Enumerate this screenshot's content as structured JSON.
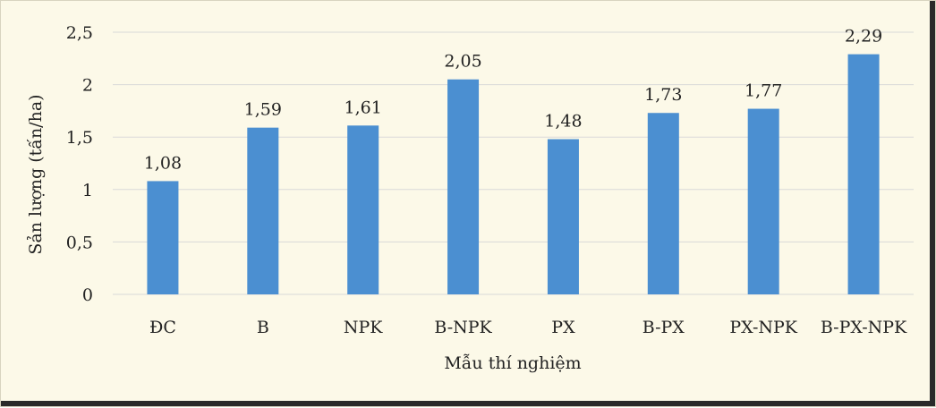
{
  "chart_data": {
    "type": "bar",
    "categories": [
      "ĐC",
      "B",
      "NPK",
      "B-NPK",
      "PX",
      "B-PX",
      "PX-NPK",
      "B-PX-NPK"
    ],
    "values": [
      1.08,
      1.59,
      1.61,
      2.05,
      1.48,
      1.73,
      1.77,
      2.29
    ],
    "value_labels": [
      "1,08",
      "1,59",
      "1,61",
      "2,05",
      "1,48",
      "1,73",
      "1,77",
      "2,29"
    ],
    "title": "",
    "xlabel": "Mẫu thí nghiệm",
    "ylabel": "Sản lượng (tấn/ha)",
    "ylim": [
      0,
      2.5
    ],
    "yticks": [
      0,
      0.5,
      1,
      1.5,
      2,
      2.5
    ],
    "ytick_labels": [
      "0",
      "0,5",
      "1",
      "1,5",
      "2",
      "2,5"
    ],
    "grid": true,
    "legend": "none",
    "bar_color": "#4b8fd1",
    "background_color": "#fcf9e8"
  }
}
